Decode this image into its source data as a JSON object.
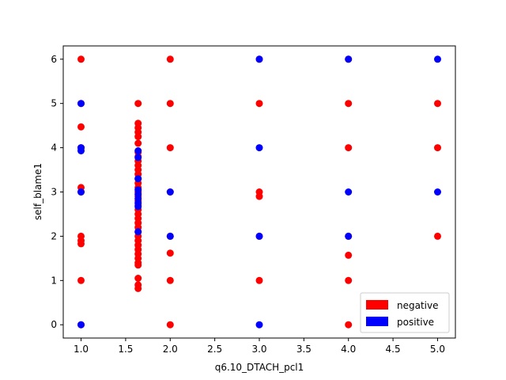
{
  "chart_data": {
    "type": "scatter",
    "title": "",
    "xlabel": "q6.10_DTACH_pcl1",
    "ylabel": "self_blame1",
    "xlim": [
      0.8,
      5.2
    ],
    "ylim": [
      -0.3,
      6.3
    ],
    "xticks": [
      "1.0",
      "1.5",
      "2.0",
      "2.5",
      "3.0",
      "3.5",
      "4.0",
      "4.5",
      "5.0"
    ],
    "yticks": [
      "0",
      "1",
      "2",
      "3",
      "4",
      "5",
      "6"
    ],
    "grid": false,
    "legend_position": "lower-right",
    "series": [
      {
        "name": "negative",
        "color": "#ff0000",
        "points": [
          [
            1,
            6
          ],
          [
            1,
            5
          ],
          [
            1,
            4.47
          ],
          [
            1,
            4
          ],
          [
            1,
            3.1
          ],
          [
            1,
            3
          ],
          [
            1,
            2
          ],
          [
            1,
            1.9
          ],
          [
            1,
            1.83
          ],
          [
            1,
            1
          ],
          [
            1,
            0
          ],
          [
            1.64,
            5
          ],
          [
            1.64,
            4.55
          ],
          [
            1.64,
            4.45
          ],
          [
            1.64,
            4.35
          ],
          [
            1.64,
            4.25
          ],
          [
            1.64,
            4.1
          ],
          [
            1.64,
            3.9
          ],
          [
            1.64,
            3.8
          ],
          [
            1.64,
            3.7
          ],
          [
            1.64,
            3.6
          ],
          [
            1.64,
            3.5
          ],
          [
            1.64,
            3.4
          ],
          [
            1.64,
            3.3
          ],
          [
            1.64,
            3.2
          ],
          [
            1.64,
            3.1
          ],
          [
            1.64,
            3.0
          ],
          [
            1.64,
            2.9
          ],
          [
            1.64,
            2.8
          ],
          [
            1.64,
            2.7
          ],
          [
            1.64,
            2.6
          ],
          [
            1.64,
            2.5
          ],
          [
            1.64,
            2.4
          ],
          [
            1.64,
            2.3
          ],
          [
            1.64,
            2.2
          ],
          [
            1.64,
            2.1
          ],
          [
            1.64,
            2.0
          ],
          [
            1.64,
            1.9
          ],
          [
            1.64,
            1.8
          ],
          [
            1.64,
            1.7
          ],
          [
            1.64,
            1.6
          ],
          [
            1.64,
            1.5
          ],
          [
            1.64,
            1.4
          ],
          [
            1.64,
            1.35
          ],
          [
            1.64,
            1.05
          ],
          [
            1.64,
            0.9
          ],
          [
            1.64,
            0.82
          ],
          [
            2,
            6
          ],
          [
            2,
            5
          ],
          [
            2,
            4
          ],
          [
            2,
            3
          ],
          [
            2,
            2
          ],
          [
            2,
            1.62
          ],
          [
            2,
            1
          ],
          [
            2,
            0
          ],
          [
            3,
            6
          ],
          [
            3,
            5
          ],
          [
            3,
            3
          ],
          [
            3,
            2.9
          ],
          [
            3,
            2
          ],
          [
            3,
            1
          ],
          [
            4,
            6
          ],
          [
            4,
            5
          ],
          [
            4,
            4
          ],
          [
            4,
            2
          ],
          [
            4,
            1.57
          ],
          [
            4,
            1
          ],
          [
            4,
            0
          ],
          [
            5,
            5
          ],
          [
            5,
            4
          ],
          [
            5,
            2
          ]
        ]
      },
      {
        "name": "positive",
        "color": "#0000ff",
        "points": [
          [
            1,
            5
          ],
          [
            1,
            4
          ],
          [
            1,
            3.93
          ],
          [
            1,
            3
          ],
          [
            1,
            0
          ],
          [
            1.64,
            3.93
          ],
          [
            1.64,
            3.78
          ],
          [
            1.64,
            3.3
          ],
          [
            1.64,
            3.05
          ],
          [
            1.64,
            2.95
          ],
          [
            1.64,
            2.85
          ],
          [
            1.64,
            2.75
          ],
          [
            1.64,
            2.67
          ],
          [
            1.64,
            2.1
          ],
          [
            2,
            3
          ],
          [
            2,
            2
          ],
          [
            3,
            6
          ],
          [
            3,
            4
          ],
          [
            3,
            2
          ],
          [
            3,
            0
          ],
          [
            4,
            6
          ],
          [
            4,
            3
          ],
          [
            4,
            2
          ],
          [
            5,
            6
          ],
          [
            5,
            3
          ]
        ]
      }
    ]
  }
}
